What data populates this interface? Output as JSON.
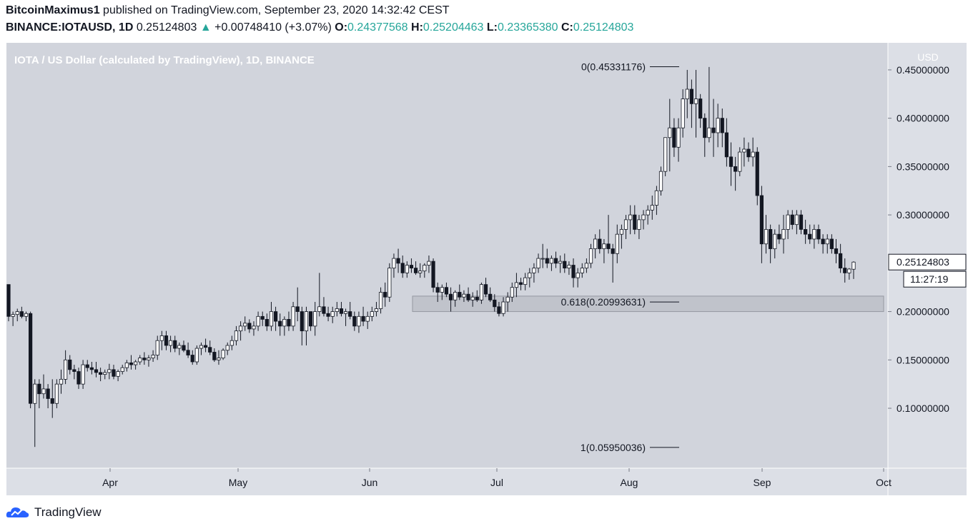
{
  "header": {
    "author": "BitcoinMaximus1",
    "published": "published on TradingView.com, September 23, 2020 14:32:42 CEST",
    "symbol": "BINANCE:IOTAUSD, 1D",
    "last": "0.25124803",
    "change": "+0.00748410 (+3.07%)",
    "o_label": "O:",
    "o": "0.24377568",
    "h_label": "H:",
    "h": "0.25204463",
    "l_label": "L:",
    "l": "0.23365380",
    "c_label": "C:",
    "c": "0.25124803"
  },
  "footer": {
    "brand": "TradingView"
  },
  "colors": {
    "pane": "#d1d4dc",
    "axis_pane": "#dcdfe6",
    "up_body": "#ffffff",
    "down_body": "#131722",
    "accent": "#26a69a"
  },
  "chart_data": {
    "type": "candlestick",
    "title": "IOTA / US Dollar (calculated by TradingView), 1D, BINANCE",
    "currency": "USD",
    "ylim": [
      0.038,
      0.478
    ],
    "y_ticks": [
      "0.45000000",
      "0.40000000",
      "0.35000000",
      "0.30000000",
      "0.20000000",
      "0.15000000",
      "0.10000000"
    ],
    "x_ticks": [
      "Apr",
      "May",
      "Jun",
      "Jul",
      "Aug",
      "Sep",
      "Oct"
    ],
    "last_price_label": "0.25124803",
    "countdown_label": "11:27:19",
    "fib_levels": [
      {
        "label": "0(0.45331176)",
        "value": 0.45331176
      },
      {
        "label": "0.618(0.20993631)",
        "value": 0.20993631
      },
      {
        "label": "1(0.05950036)",
        "value": 0.05950036
      }
    ],
    "support_zone": {
      "low": 0.2,
      "high": 0.216
    },
    "candles": [
      [
        0.228,
        0.228,
        0.19,
        0.195
      ],
      [
        0.195,
        0.2,
        0.185,
        0.197
      ],
      [
        0.197,
        0.203,
        0.19,
        0.2
      ],
      [
        0.2,
        0.205,
        0.193,
        0.195
      ],
      [
        0.195,
        0.2,
        0.19,
        0.198
      ],
      [
        0.198,
        0.2,
        0.1,
        0.105
      ],
      [
        0.105,
        0.13,
        0.06,
        0.125
      ],
      [
        0.125,
        0.13,
        0.1,
        0.115
      ],
      [
        0.115,
        0.135,
        0.11,
        0.12
      ],
      [
        0.12,
        0.125,
        0.1,
        0.11
      ],
      [
        0.11,
        0.13,
        0.09,
        0.105
      ],
      [
        0.105,
        0.13,
        0.1,
        0.125
      ],
      [
        0.125,
        0.14,
        0.115,
        0.13
      ],
      [
        0.13,
        0.16,
        0.125,
        0.15
      ],
      [
        0.15,
        0.155,
        0.135,
        0.14
      ],
      [
        0.14,
        0.145,
        0.13,
        0.138
      ],
      [
        0.138,
        0.142,
        0.12,
        0.125
      ],
      [
        0.125,
        0.15,
        0.12,
        0.145
      ],
      [
        0.145,
        0.15,
        0.138,
        0.142
      ],
      [
        0.142,
        0.148,
        0.135,
        0.14
      ],
      [
        0.14,
        0.148,
        0.132,
        0.137
      ],
      [
        0.137,
        0.142,
        0.128,
        0.135
      ],
      [
        0.135,
        0.14,
        0.13,
        0.137
      ],
      [
        0.137,
        0.146,
        0.13,
        0.14
      ],
      [
        0.14,
        0.145,
        0.13,
        0.133
      ],
      [
        0.133,
        0.14,
        0.128,
        0.138
      ],
      [
        0.138,
        0.145,
        0.135,
        0.142
      ],
      [
        0.142,
        0.15,
        0.138,
        0.147
      ],
      [
        0.147,
        0.155,
        0.14,
        0.145
      ],
      [
        0.145,
        0.15,
        0.14,
        0.148
      ],
      [
        0.148,
        0.155,
        0.145,
        0.152
      ],
      [
        0.152,
        0.158,
        0.145,
        0.15
      ],
      [
        0.15,
        0.155,
        0.143,
        0.152
      ],
      [
        0.152,
        0.16,
        0.148,
        0.155
      ],
      [
        0.155,
        0.175,
        0.15,
        0.17
      ],
      [
        0.17,
        0.18,
        0.16,
        0.175
      ],
      [
        0.175,
        0.18,
        0.16,
        0.165
      ],
      [
        0.165,
        0.175,
        0.158,
        0.17
      ],
      [
        0.17,
        0.175,
        0.158,
        0.162
      ],
      [
        0.162,
        0.168,
        0.155,
        0.165
      ],
      [
        0.165,
        0.17,
        0.158,
        0.16
      ],
      [
        0.16,
        0.168,
        0.152,
        0.155
      ],
      [
        0.155,
        0.16,
        0.145,
        0.148
      ],
      [
        0.148,
        0.165,
        0.145,
        0.162
      ],
      [
        0.162,
        0.168,
        0.155,
        0.165
      ],
      [
        0.165,
        0.172,
        0.158,
        0.163
      ],
      [
        0.163,
        0.17,
        0.155,
        0.158
      ],
      [
        0.158,
        0.162,
        0.148,
        0.15
      ],
      [
        0.15,
        0.16,
        0.145,
        0.152
      ],
      [
        0.152,
        0.162,
        0.15,
        0.16
      ],
      [
        0.16,
        0.168,
        0.155,
        0.165
      ],
      [
        0.165,
        0.175,
        0.16,
        0.17
      ],
      [
        0.17,
        0.185,
        0.165,
        0.18
      ],
      [
        0.18,
        0.19,
        0.17,
        0.185
      ],
      [
        0.185,
        0.195,
        0.18,
        0.188
      ],
      [
        0.188,
        0.192,
        0.178,
        0.182
      ],
      [
        0.182,
        0.19,
        0.175,
        0.185
      ],
      [
        0.185,
        0.2,
        0.18,
        0.195
      ],
      [
        0.195,
        0.2,
        0.185,
        0.192
      ],
      [
        0.192,
        0.198,
        0.18,
        0.185
      ],
      [
        0.185,
        0.21,
        0.18,
        0.2
      ],
      [
        0.2,
        0.205,
        0.18,
        0.19
      ],
      [
        0.19,
        0.198,
        0.175,
        0.185
      ],
      [
        0.185,
        0.195,
        0.175,
        0.192
      ],
      [
        0.192,
        0.2,
        0.18,
        0.185
      ],
      [
        0.185,
        0.21,
        0.18,
        0.205
      ],
      [
        0.205,
        0.225,
        0.19,
        0.2
      ],
      [
        0.2,
        0.205,
        0.165,
        0.18
      ],
      [
        0.18,
        0.205,
        0.165,
        0.2
      ],
      [
        0.2,
        0.2,
        0.18,
        0.185
      ],
      [
        0.185,
        0.21,
        0.175,
        0.2
      ],
      [
        0.2,
        0.24,
        0.195,
        0.205
      ],
      [
        0.205,
        0.215,
        0.195,
        0.198
      ],
      [
        0.198,
        0.205,
        0.19,
        0.195
      ],
      [
        0.195,
        0.205,
        0.188,
        0.2
      ],
      [
        0.2,
        0.21,
        0.195,
        0.203
      ],
      [
        0.203,
        0.21,
        0.195,
        0.198
      ],
      [
        0.198,
        0.203,
        0.185,
        0.2
      ],
      [
        0.2,
        0.21,
        0.192,
        0.195
      ],
      [
        0.195,
        0.2,
        0.18,
        0.185
      ],
      [
        0.185,
        0.2,
        0.178,
        0.195
      ],
      [
        0.195,
        0.205,
        0.185,
        0.19
      ],
      [
        0.19,
        0.2,
        0.182,
        0.195
      ],
      [
        0.195,
        0.205,
        0.19,
        0.2
      ],
      [
        0.2,
        0.21,
        0.195,
        0.203
      ],
      [
        0.203,
        0.225,
        0.198,
        0.22
      ],
      [
        0.22,
        0.23,
        0.205,
        0.215
      ],
      [
        0.215,
        0.25,
        0.21,
        0.245
      ],
      [
        0.245,
        0.26,
        0.235,
        0.255
      ],
      [
        0.255,
        0.265,
        0.24,
        0.25
      ],
      [
        0.25,
        0.258,
        0.235,
        0.24
      ],
      [
        0.24,
        0.252,
        0.235,
        0.248
      ],
      [
        0.248,
        0.255,
        0.24,
        0.245
      ],
      [
        0.245,
        0.252,
        0.238,
        0.24
      ],
      [
        0.24,
        0.25,
        0.235,
        0.242
      ],
      [
        0.242,
        0.25,
        0.235,
        0.248
      ],
      [
        0.248,
        0.258,
        0.24,
        0.252
      ],
      [
        0.252,
        0.255,
        0.22,
        0.225
      ],
      [
        0.225,
        0.23,
        0.21,
        0.22
      ],
      [
        0.22,
        0.228,
        0.212,
        0.225
      ],
      [
        0.225,
        0.23,
        0.215,
        0.218
      ],
      [
        0.218,
        0.225,
        0.2,
        0.212
      ],
      [
        0.212,
        0.222,
        0.205,
        0.22
      ],
      [
        0.22,
        0.228,
        0.212,
        0.215
      ],
      [
        0.215,
        0.222,
        0.21,
        0.218
      ],
      [
        0.218,
        0.225,
        0.21,
        0.212
      ],
      [
        0.212,
        0.22,
        0.205,
        0.215
      ],
      [
        0.215,
        0.222,
        0.21,
        0.212
      ],
      [
        0.212,
        0.23,
        0.208,
        0.228
      ],
      [
        0.228,
        0.235,
        0.215,
        0.218
      ],
      [
        0.218,
        0.225,
        0.21,
        0.212
      ],
      [
        0.212,
        0.218,
        0.2,
        0.205
      ],
      [
        0.205,
        0.21,
        0.195,
        0.198
      ],
      [
        0.198,
        0.215,
        0.195,
        0.21
      ],
      [
        0.21,
        0.22,
        0.2,
        0.215
      ],
      [
        0.215,
        0.23,
        0.21,
        0.225
      ],
      [
        0.225,
        0.24,
        0.215,
        0.23
      ],
      [
        0.23,
        0.235,
        0.222,
        0.228
      ],
      [
        0.228,
        0.24,
        0.222,
        0.235
      ],
      [
        0.235,
        0.245,
        0.225,
        0.24
      ],
      [
        0.24,
        0.25,
        0.23,
        0.245
      ],
      [
        0.245,
        0.26,
        0.24,
        0.255
      ],
      [
        0.255,
        0.27,
        0.245,
        0.255
      ],
      [
        0.255,
        0.265,
        0.245,
        0.25
      ],
      [
        0.25,
        0.258,
        0.242,
        0.255
      ],
      [
        0.255,
        0.262,
        0.245,
        0.25
      ],
      [
        0.25,
        0.258,
        0.24,
        0.252
      ],
      [
        0.252,
        0.26,
        0.24,
        0.245
      ],
      [
        0.245,
        0.252,
        0.238,
        0.248
      ],
      [
        0.248,
        0.255,
        0.225,
        0.235
      ],
      [
        0.235,
        0.245,
        0.225,
        0.24
      ],
      [
        0.24,
        0.25,
        0.235,
        0.245
      ],
      [
        0.245,
        0.255,
        0.24,
        0.25
      ],
      [
        0.25,
        0.27,
        0.245,
        0.265
      ],
      [
        0.265,
        0.28,
        0.255,
        0.275
      ],
      [
        0.275,
        0.285,
        0.26,
        0.265
      ],
      [
        0.265,
        0.275,
        0.25,
        0.27
      ],
      [
        0.27,
        0.3,
        0.26,
        0.265
      ],
      [
        0.265,
        0.27,
        0.23,
        0.26
      ],
      [
        0.26,
        0.29,
        0.25,
        0.28
      ],
      [
        0.28,
        0.29,
        0.265,
        0.285
      ],
      [
        0.285,
        0.3,
        0.275,
        0.295
      ],
      [
        0.295,
        0.31,
        0.28,
        0.3
      ],
      [
        0.3,
        0.31,
        0.28,
        0.285
      ],
      [
        0.285,
        0.3,
        0.275,
        0.295
      ],
      [
        0.295,
        0.305,
        0.285,
        0.3
      ],
      [
        0.3,
        0.31,
        0.29,
        0.305
      ],
      [
        0.305,
        0.32,
        0.295,
        0.31
      ],
      [
        0.31,
        0.33,
        0.3,
        0.325
      ],
      [
        0.325,
        0.35,
        0.32,
        0.345
      ],
      [
        0.345,
        0.38,
        0.34,
        0.38
      ],
      [
        0.38,
        0.42,
        0.345,
        0.39
      ],
      [
        0.39,
        0.4,
        0.36,
        0.37
      ],
      [
        0.37,
        0.4,
        0.355,
        0.39
      ],
      [
        0.39,
        0.43,
        0.38,
        0.42
      ],
      [
        0.42,
        0.45,
        0.4,
        0.43
      ],
      [
        0.43,
        0.44,
        0.39,
        0.415
      ],
      [
        0.415,
        0.45,
        0.38,
        0.42
      ],
      [
        0.42,
        0.425,
        0.39,
        0.4
      ],
      [
        0.4,
        0.405,
        0.36,
        0.38
      ],
      [
        0.38,
        0.453,
        0.375,
        0.39
      ],
      [
        0.39,
        0.42,
        0.36,
        0.385
      ],
      [
        0.385,
        0.415,
        0.37,
        0.4
      ],
      [
        0.4,
        0.41,
        0.37,
        0.385
      ],
      [
        0.385,
        0.4,
        0.35,
        0.36
      ],
      [
        0.36,
        0.375,
        0.33,
        0.35
      ],
      [
        0.35,
        0.36,
        0.325,
        0.345
      ],
      [
        0.345,
        0.37,
        0.34,
        0.365
      ],
      [
        0.365,
        0.38,
        0.35,
        0.368
      ],
      [
        0.368,
        0.375,
        0.355,
        0.36
      ],
      [
        0.36,
        0.38,
        0.35,
        0.365
      ],
      [
        0.365,
        0.37,
        0.31,
        0.32
      ],
      [
        0.32,
        0.33,
        0.25,
        0.27
      ],
      [
        0.27,
        0.3,
        0.26,
        0.285
      ],
      [
        0.285,
        0.29,
        0.25,
        0.265
      ],
      [
        0.265,
        0.285,
        0.255,
        0.28
      ],
      [
        0.28,
        0.29,
        0.27,
        0.275
      ],
      [
        0.275,
        0.3,
        0.26,
        0.285
      ],
      [
        0.285,
        0.305,
        0.275,
        0.3
      ],
      [
        0.3,
        0.305,
        0.285,
        0.29
      ],
      [
        0.29,
        0.305,
        0.28,
        0.3
      ],
      [
        0.3,
        0.305,
        0.28,
        0.285
      ],
      [
        0.285,
        0.295,
        0.27,
        0.28
      ],
      [
        0.28,
        0.29,
        0.27,
        0.275
      ],
      [
        0.275,
        0.29,
        0.265,
        0.285
      ],
      [
        0.285,
        0.29,
        0.27,
        0.275
      ],
      [
        0.275,
        0.28,
        0.26,
        0.27
      ],
      [
        0.27,
        0.28,
        0.26,
        0.275
      ],
      [
        0.275,
        0.28,
        0.26,
        0.265
      ],
      [
        0.265,
        0.275,
        0.25,
        0.26
      ],
      [
        0.26,
        0.27,
        0.24,
        0.245
      ],
      [
        0.245,
        0.255,
        0.23,
        0.24
      ],
      [
        0.24,
        0.245,
        0.233,
        0.244
      ],
      [
        0.2438,
        0.252,
        0.2337,
        0.2512
      ]
    ]
  }
}
